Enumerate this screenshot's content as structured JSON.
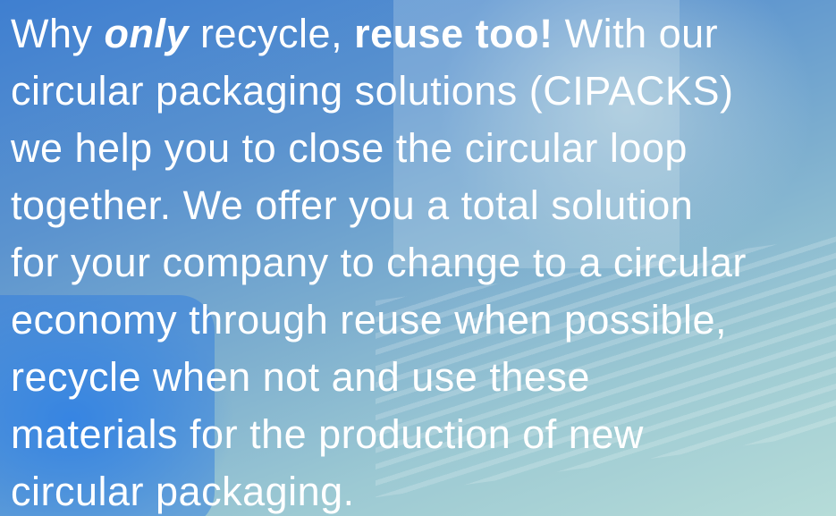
{
  "paragraph": {
    "lines": [
      [
        "Why ",
        "only",
        " recycle, ",
        "reuse too!",
        " With our"
      ],
      [
        "circular packaging solutions (CIPACKS)"
      ],
      [
        "we help you to close the circular loop"
      ],
      [
        "together. We offer you a total solution"
      ],
      [
        "for your company to change to a circular"
      ],
      [
        "economy through reuse when possible,"
      ],
      [
        "recycle when not and use these"
      ],
      [
        "materials for the production of new"
      ],
      [
        "circular packaging."
      ]
    ]
  }
}
